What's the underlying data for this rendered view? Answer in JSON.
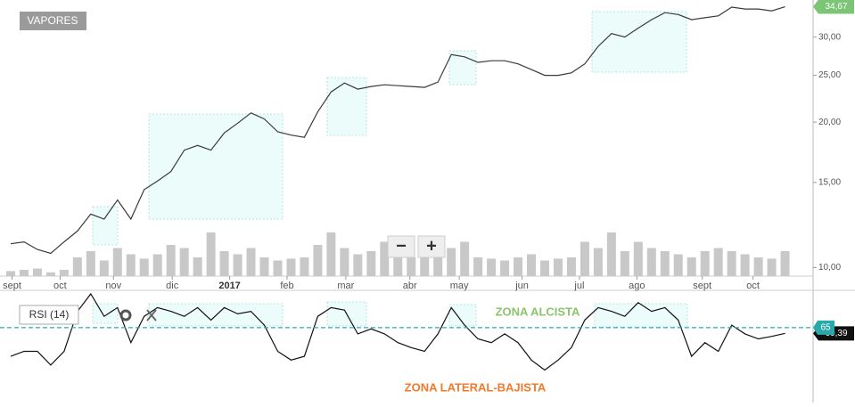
{
  "controls": {
    "zoom_out": "−",
    "zoom_in": "+"
  },
  "chart_data": [
    {
      "type": "line",
      "title": "VAPORES",
      "log_scale": true,
      "color": "#3a3a3a",
      "values": [
        11.2,
        11.3,
        10.9,
        10.7,
        11.3,
        11.9,
        12.9,
        12.6,
        13.8,
        12.6,
        14.5,
        15.1,
        15.8,
        17.5,
        17.9,
        17.5,
        19.0,
        19.9,
        20.9,
        20.3,
        19.1,
        18.8,
        18.6,
        21.0,
        23.1,
        24.1,
        23.4,
        23.7,
        23.9,
        23.8,
        23.7,
        23.6,
        24.2,
        27.6,
        27.3,
        26.6,
        26.8,
        26.8,
        26.4,
        25.7,
        25.0,
        25.0,
        25.3,
        26.4,
        28.7,
        30.5,
        30.0,
        31.3,
        32.6,
        33.7,
        33.4,
        32.6,
        32.9,
        33.2,
        34.6,
        34.3,
        34.3,
        34.0,
        34.67
      ],
      "value_labels": [
        null,
        null,
        null,
        null,
        null,
        null,
        null,
        null,
        null,
        null,
        null,
        null,
        null,
        null,
        null,
        null,
        null,
        null,
        null,
        null,
        null,
        null,
        null,
        null,
        null,
        null,
        null,
        null,
        null,
        null,
        null,
        null,
        null,
        null,
        null,
        null,
        null,
        null,
        null,
        null,
        null,
        null,
        null,
        null,
        null,
        null,
        null,
        null,
        null,
        null,
        null,
        null,
        null,
        null,
        null,
        null,
        null,
        null,
        "34,67"
      ],
      "label_color": "#7cc576",
      "volume": [
        8,
        10,
        12,
        6,
        10,
        30,
        40,
        25,
        45,
        35,
        28,
        35,
        50,
        45,
        30,
        70,
        40,
        35,
        45,
        30,
        25,
        28,
        30,
        50,
        70,
        45,
        35,
        40,
        55,
        38,
        30,
        35,
        30,
        45,
        55,
        30,
        28,
        25,
        30,
        35,
        25,
        28,
        30,
        55,
        45,
        70,
        40,
        55,
        45,
        40,
        35,
        30,
        40,
        45,
        40,
        35,
        30,
        28,
        40
      ],
      "volume_color": "#c8c8c8",
      "volume_lim": [
        0,
        100
      ],
      "xlim": [
        -0.8,
        60.1
      ],
      "xticks": [
        {
          "value": 0.1,
          "label": "sept"
        },
        {
          "value": 3.7,
          "label": "oct"
        },
        {
          "value": 7.7,
          "label": "nov"
        },
        {
          "value": 12.1,
          "label": "dic"
        },
        {
          "value": 16.4,
          "label": "2017"
        },
        {
          "value": 20.7,
          "label": "feb"
        },
        {
          "value": 25.1,
          "label": "mar"
        },
        {
          "value": 29.9,
          "label": "abr"
        },
        {
          "value": 33.6,
          "label": "may"
        },
        {
          "value": 38.3,
          "label": "jun"
        },
        {
          "value": 42.6,
          "label": "jul"
        },
        {
          "value": 46.9,
          "label": "ago"
        },
        {
          "value": 51.8,
          "label": "sept"
        },
        {
          "value": 55.6,
          "label": "oct"
        }
      ],
      "ylim": [
        9.6,
        35.8
      ],
      "yticks": [
        {
          "value": 10,
          "label": "10,00"
        },
        {
          "value": 15,
          "label": "15,00"
        },
        {
          "value": 20,
          "label": "20,00"
        },
        {
          "value": 25,
          "label": "25,00"
        },
        {
          "value": 30,
          "label": "30,00"
        }
      ]
    },
    {
      "type": "line",
      "title": "RSI (14)",
      "color": "#111111",
      "values": [
        42,
        46,
        46,
        35,
        46,
        78,
        92,
        74,
        81,
        53,
        74,
        81,
        78,
        74,
        81,
        71,
        81,
        76,
        78,
        67,
        46,
        39,
        42,
        74,
        81,
        79,
        60,
        64,
        60,
        53,
        49,
        46,
        60,
        81,
        67,
        56,
        53,
        60,
        53,
        39,
        31,
        39,
        49,
        71,
        81,
        78,
        74,
        85,
        78,
        81,
        71,
        42,
        53,
        46,
        67,
        60,
        56,
        58,
        60.39
      ],
      "value_labels": [
        null,
        null,
        null,
        null,
        null,
        null,
        null,
        null,
        null,
        null,
        null,
        null,
        null,
        null,
        null,
        null,
        null,
        null,
        null,
        null,
        null,
        null,
        null,
        null,
        null,
        null,
        null,
        null,
        null,
        null,
        null,
        null,
        null,
        null,
        null,
        null,
        null,
        null,
        null,
        null,
        null,
        null,
        null,
        null,
        null,
        null,
        null,
        null,
        null,
        null,
        null,
        null,
        null,
        null,
        null,
        null,
        null,
        null,
        "60,39"
      ],
      "xlim": [
        -0.8,
        60.1
      ],
      "ylim": [
        5,
        92
      ],
      "level": 65,
      "level_color": "#2aa9a9",
      "annotations": [
        {
          "text": "ZONA ALCISTA",
          "color": "#8cc46b"
        },
        {
          "text": "ZONA LATERAL-BAJISTA",
          "color": "#f07a2a"
        }
      ]
    }
  ]
}
